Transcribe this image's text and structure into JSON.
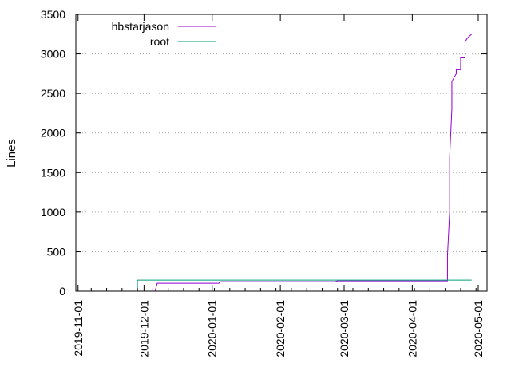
{
  "chart_data": {
    "type": "line",
    "xlabel": "",
    "ylabel": "Lines",
    "ylim": [
      0,
      3500
    ],
    "yticks": [
      0,
      500,
      1000,
      1500,
      2000,
      2500,
      3000,
      3500
    ],
    "xlim": [
      "2019-10-31",
      "2020-05-05"
    ],
    "xtick_labels": [
      "2019-11-01",
      "2019-12-01",
      "2020-01-01",
      "2020-02-01",
      "2020-03-01",
      "2020-04-01",
      "2020-05-01"
    ],
    "grid": "horizontal dotted",
    "legend_position": "top-left",
    "series": [
      {
        "name": "hbstarjason",
        "color": "#9400d3",
        "points": [
          [
            "2019-12-06",
            0
          ],
          [
            "2019-12-07",
            100
          ],
          [
            "2020-01-04",
            100
          ],
          [
            "2020-01-05",
            120
          ],
          [
            "2020-02-26",
            120
          ],
          [
            "2020-02-27",
            130
          ],
          [
            "2020-04-17",
            130
          ],
          [
            "2020-04-17",
            450
          ],
          [
            "2020-04-18",
            1000
          ],
          [
            "2020-04-18",
            1700
          ],
          [
            "2020-04-19",
            2300
          ],
          [
            "2020-04-19",
            2650
          ],
          [
            "2020-04-20",
            2700
          ],
          [
            "2020-04-21",
            2750
          ],
          [
            "2020-04-21",
            2800
          ],
          [
            "2020-04-23",
            2800
          ],
          [
            "2020-04-23",
            2950
          ],
          [
            "2020-04-25",
            2950
          ],
          [
            "2020-04-25",
            3150
          ],
          [
            "2020-04-26",
            3200
          ],
          [
            "2020-04-28",
            3250
          ]
        ]
      },
      {
        "name": "root",
        "color": "#009e73",
        "points": [
          [
            "2019-11-28",
            0
          ],
          [
            "2019-11-28",
            140
          ],
          [
            "2020-04-28",
            140
          ]
        ]
      }
    ]
  }
}
